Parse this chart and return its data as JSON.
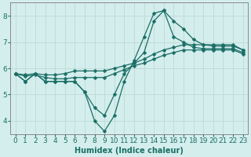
{
  "xlabel": "Humidex (Indice chaleur)",
  "background_color": "#d4eeed",
  "line_color": "#1a6e65",
  "grid_color": "#c0dcd8",
  "xlim": [
    -0.5,
    23.5
  ],
  "ylim": [
    3.5,
    8.5
  ],
  "yticks": [
    4,
    5,
    6,
    7,
    8
  ],
  "xticks": [
    0,
    1,
    2,
    3,
    4,
    5,
    6,
    7,
    8,
    9,
    10,
    11,
    12,
    13,
    14,
    15,
    16,
    17,
    18,
    19,
    20,
    21,
    22,
    23
  ],
  "lines": [
    {
      "x": [
        0,
        1,
        2,
        3,
        4,
        5,
        6,
        7,
        8,
        9,
        10,
        11,
        12,
        13,
        14,
        15,
        16,
        17,
        18,
        19,
        20,
        21,
        22,
        23
      ],
      "y": [
        5.8,
        5.5,
        5.8,
        5.5,
        5.5,
        5.5,
        5.5,
        5.1,
        4.0,
        3.6,
        4.2,
        5.5,
        6.3,
        7.2,
        8.1,
        8.2,
        7.8,
        7.5,
        7.1,
        6.9,
        6.85,
        6.85,
        6.85,
        6.7
      ]
    },
    {
      "x": [
        0,
        1,
        2,
        3,
        4,
        5,
        6,
        7,
        8,
        9,
        10,
        11,
        12,
        13,
        14,
        15,
        16,
        17,
        18,
        19,
        20,
        21,
        22,
        23
      ],
      "y": [
        5.8,
        5.5,
        5.8,
        5.5,
        5.5,
        5.5,
        5.5,
        5.1,
        4.5,
        4.2,
        5.0,
        5.8,
        6.2,
        6.6,
        7.8,
        8.2,
        7.2,
        7.0,
        6.8,
        6.75,
        6.75,
        6.75,
        6.75,
        6.6
      ]
    },
    {
      "x": [
        0,
        1,
        2,
        3,
        4,
        5,
        6,
        7,
        8,
        9,
        10,
        11,
        12,
        13,
        14,
        15,
        16,
        17,
        18,
        19,
        20,
        21,
        22,
        23
      ],
      "y": [
        5.8,
        5.75,
        5.8,
        5.75,
        5.75,
        5.8,
        5.9,
        5.9,
        5.9,
        5.9,
        6.0,
        6.1,
        6.2,
        6.35,
        6.55,
        6.7,
        6.8,
        6.9,
        6.9,
        6.9,
        6.9,
        6.9,
        6.9,
        6.7
      ]
    },
    {
      "x": [
        0,
        1,
        2,
        3,
        4,
        5,
        6,
        7,
        8,
        9,
        10,
        11,
        12,
        13,
        14,
        15,
        16,
        17,
        18,
        19,
        20,
        21,
        22,
        23
      ],
      "y": [
        5.8,
        5.7,
        5.75,
        5.65,
        5.6,
        5.6,
        5.65,
        5.65,
        5.65,
        5.65,
        5.8,
        5.95,
        6.1,
        6.2,
        6.35,
        6.5,
        6.6,
        6.7,
        6.7,
        6.7,
        6.7,
        6.7,
        6.7,
        6.55
      ]
    }
  ],
  "marker": "D",
  "markersize": 2.5,
  "linewidth": 0.9,
  "tick_labelsize": 6.5,
  "xlabel_fontsize": 7,
  "spine_color": "#888888"
}
